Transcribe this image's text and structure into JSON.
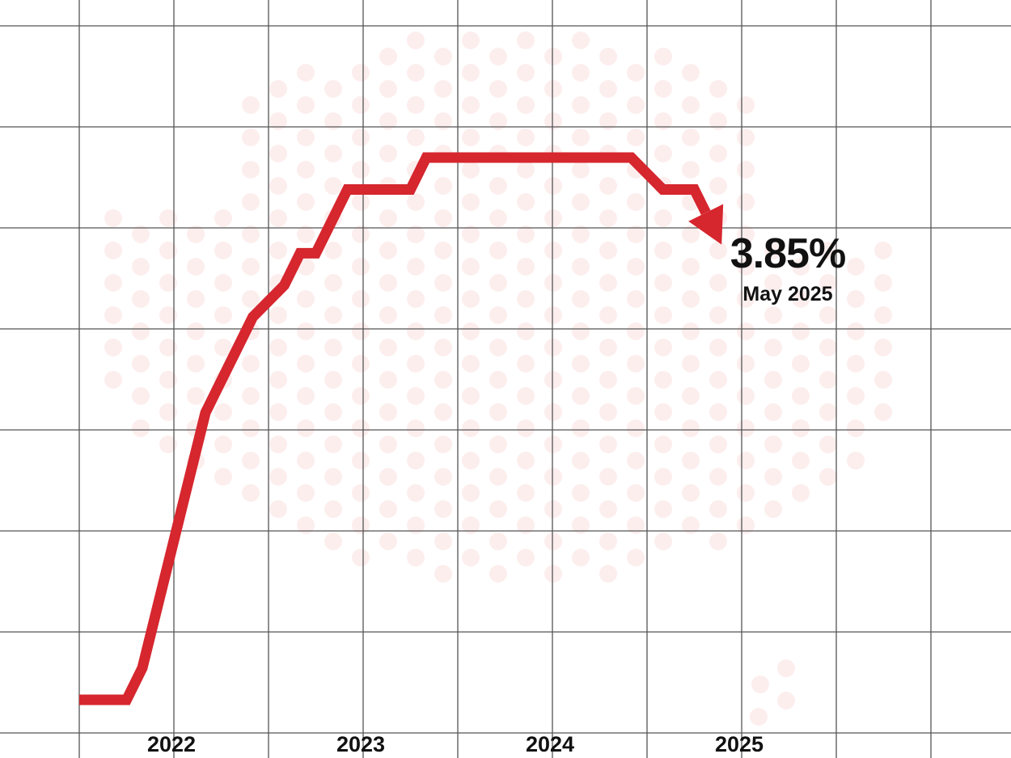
{
  "chart_data": {
    "type": "line",
    "title": "",
    "xlabel": "",
    "ylabel": "",
    "x_tick_labels": [
      "2022",
      "2023",
      "2024",
      "2025"
    ],
    "grid": true,
    "series": [
      {
        "color": "#d6262e",
        "points": [
          {
            "x": "2022-01",
            "y": 0.1
          },
          {
            "x": "2022-04",
            "y": 0.1
          },
          {
            "x": "2022-05",
            "y": 0.35
          },
          {
            "x": "2022-06",
            "y": 0.85
          },
          {
            "x": "2022-07",
            "y": 1.35
          },
          {
            "x": "2022-08",
            "y": 1.85
          },
          {
            "x": "2022-09",
            "y": 2.35
          },
          {
            "x": "2022-10",
            "y": 2.6
          },
          {
            "x": "2022-11",
            "y": 2.85
          },
          {
            "x": "2022-12",
            "y": 3.1
          },
          {
            "x": "2023-02",
            "y": 3.35
          },
          {
            "x": "2023-03",
            "y": 3.6
          },
          {
            "x": "2023-04",
            "y": 3.6
          },
          {
            "x": "2023-05",
            "y": 3.85
          },
          {
            "x": "2023-06",
            "y": 4.1
          },
          {
            "x": "2023-10",
            "y": 4.1
          },
          {
            "x": "2023-11",
            "y": 4.35
          },
          {
            "x": "2024-12",
            "y": 4.35
          },
          {
            "x": "2025-02",
            "y": 4.1
          },
          {
            "x": "2025-04",
            "y": 4.1
          },
          {
            "x": "2025-05",
            "y": 3.85
          }
        ]
      }
    ],
    "annotation": {
      "value": "3.85%",
      "date": "May 2025"
    }
  },
  "colors": {
    "line": "#d6262e",
    "grid": "#555555",
    "dots": "#fdeeee",
    "text": "#111111"
  }
}
